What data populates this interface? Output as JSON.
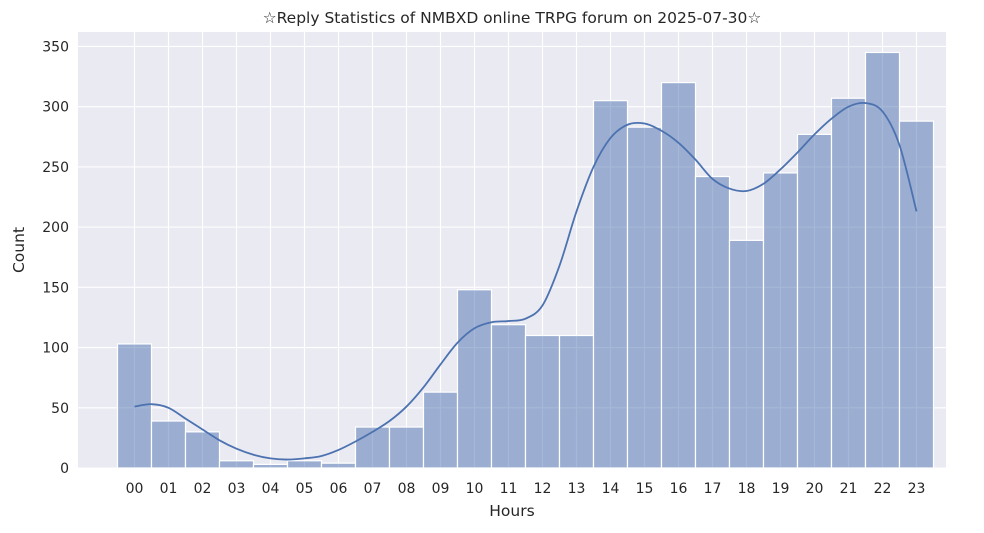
{
  "chart_data": {
    "type": "bar",
    "title": "☆Reply Statistics of NMBXD online TRPG forum on 2025-07-30☆",
    "xlabel": "Hours",
    "ylabel": "Count",
    "categories": [
      "00",
      "01",
      "02",
      "03",
      "04",
      "05",
      "06",
      "07",
      "08",
      "09",
      "10",
      "11",
      "12",
      "13",
      "14",
      "15",
      "16",
      "17",
      "18",
      "19",
      "20",
      "21",
      "22",
      "23"
    ],
    "values": [
      103,
      39,
      30,
      6,
      3,
      6,
      4,
      34,
      34,
      63,
      148,
      119,
      110,
      110,
      305,
      283,
      320,
      242,
      189,
      245,
      277,
      307,
      345,
      288
    ],
    "kde": {
      "x": [
        0,
        0.5,
        1,
        1.5,
        2,
        2.5,
        3,
        3.5,
        4,
        4.5,
        5,
        5.5,
        6,
        6.5,
        7,
        7.5,
        8,
        8.5,
        9,
        9.5,
        10,
        10.5,
        11,
        11.5,
        12,
        12.5,
        13,
        13.5,
        14,
        14.5,
        15,
        15.5,
        16,
        16.5,
        17,
        17.5,
        18,
        18.5,
        19,
        19.5,
        20,
        20.5,
        21,
        21.5,
        22,
        22.5,
        23
      ],
      "y": [
        51,
        53,
        50,
        41,
        32,
        23,
        16,
        11,
        8,
        7,
        8,
        10,
        15,
        22,
        30,
        39,
        51,
        67,
        86,
        104,
        116,
        121,
        122,
        124,
        135,
        168,
        213,
        250,
        274,
        285,
        286,
        280,
        270,
        256,
        240,
        232,
        230,
        236,
        248,
        262,
        277,
        290,
        300,
        303,
        296,
        268,
        213
      ]
    },
    "ylim": [
      0,
      362
    ],
    "yticks": [
      0,
      50,
      100,
      150,
      200,
      250,
      300,
      350
    ],
    "grid": true,
    "colors": {
      "background": "#eaeaf2",
      "grid": "#ffffff",
      "bar_fill": "#4c72b0",
      "bar_fill_opacity": 0.5,
      "bar_edge": "#ffffff",
      "kde_line": "#4c72b0"
    }
  }
}
